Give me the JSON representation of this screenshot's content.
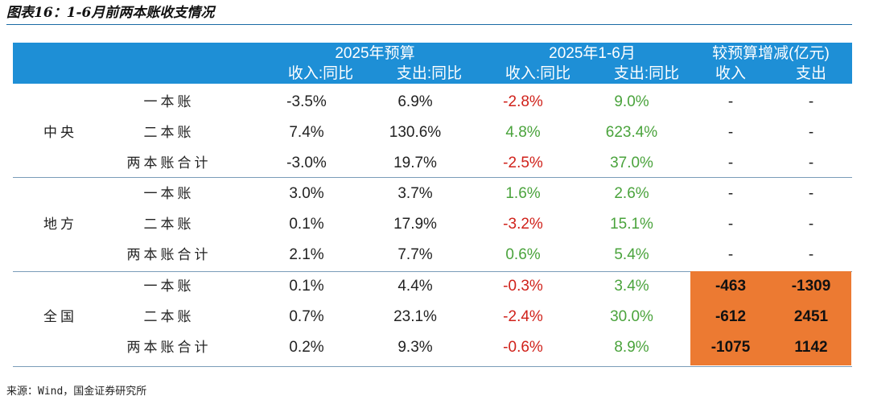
{
  "title": "图表16：1-6月前两本账收支情况",
  "header": {
    "group1": "2025年预算",
    "group2": "2025年1-6月",
    "group3": "较预算增减(亿元)",
    "sub": [
      "收入:同比",
      "支出:同比",
      "收入:同比",
      "支出:同比",
      "收入",
      "支出"
    ]
  },
  "groups": [
    {
      "name": "中央",
      "rows": [
        {
          "label": "一本账",
          "budget_rev": "-3.5%",
          "budget_exp": "6.9%",
          "act_rev": "-2.8%",
          "act_exp": "9.0%",
          "diff_rev": "-",
          "diff_exp": "-"
        },
        {
          "label": "二本账",
          "budget_rev": "7.4%",
          "budget_exp": "130.6%",
          "act_rev": "4.8%",
          "act_exp": "623.4%",
          "diff_rev": "-",
          "diff_exp": "-"
        },
        {
          "label": "两本账合计",
          "budget_rev": "-3.0%",
          "budget_exp": "19.7%",
          "act_rev": "-2.5%",
          "act_exp": "37.0%",
          "diff_rev": "-",
          "diff_exp": "-"
        }
      ]
    },
    {
      "name": "地方",
      "rows": [
        {
          "label": "一本账",
          "budget_rev": "3.0%",
          "budget_exp": "3.7%",
          "act_rev": "1.6%",
          "act_exp": "2.6%",
          "diff_rev": "-",
          "diff_exp": "-"
        },
        {
          "label": "二本账",
          "budget_rev": "0.1%",
          "budget_exp": "17.9%",
          "act_rev": "-3.2%",
          "act_exp": "15.1%",
          "diff_rev": "-",
          "diff_exp": "-"
        },
        {
          "label": "两本账合计",
          "budget_rev": "2.1%",
          "budget_exp": "7.7%",
          "act_rev": "0.6%",
          "act_exp": "5.4%",
          "diff_rev": "-",
          "diff_exp": "-"
        }
      ]
    },
    {
      "name": "全国",
      "rows": [
        {
          "label": "一本账",
          "budget_rev": "0.1%",
          "budget_exp": "4.4%",
          "act_rev": "-0.3%",
          "act_exp": "3.4%",
          "diff_rev": "-463",
          "diff_exp": "-1309"
        },
        {
          "label": "二本账",
          "budget_rev": "0.7%",
          "budget_exp": "23.1%",
          "act_rev": "-2.4%",
          "act_exp": "30.0%",
          "diff_rev": "-612",
          "diff_exp": "2451"
        },
        {
          "label": "两本账合计",
          "budget_rev": "0.2%",
          "budget_exp": "9.3%",
          "act_rev": "-0.6%",
          "act_exp": "8.9%",
          "diff_rev": "-1075",
          "diff_exp": "1142"
        }
      ]
    }
  ],
  "colors": {
    "header_bg": "#1e8fd6",
    "highlight": "#ec7a32",
    "negative_red": "#d0221b",
    "positive_green": "#4aa33c"
  },
  "footer": "来源：Wind，国金证券研究所"
}
